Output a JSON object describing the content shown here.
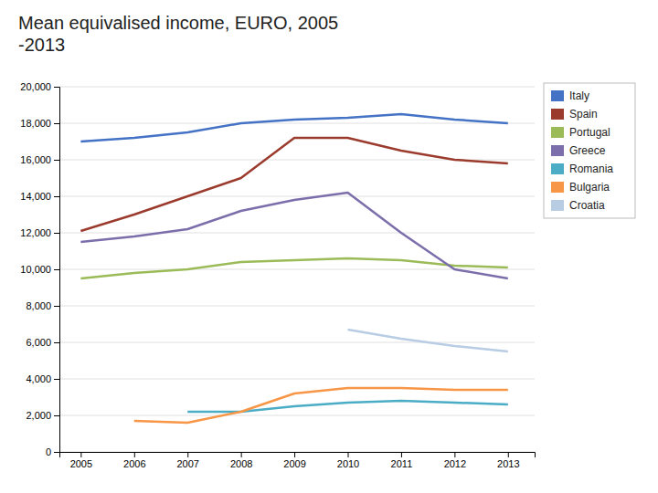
{
  "chart_data": {
    "type": "line",
    "title": "Mean equivalised income, EURO, 2005\n-2013",
    "x": [
      2005,
      2006,
      2007,
      2008,
      2009,
      2010,
      2011,
      2012,
      2013
    ],
    "series": [
      {
        "name": "Italy",
        "color": "#4472C4",
        "values": [
          17000,
          17200,
          17500,
          18000,
          18200,
          18300,
          18500,
          18200,
          18000
        ]
      },
      {
        "name": "Spain",
        "color": "#9B3B2D",
        "values": [
          12100,
          13000,
          14000,
          15000,
          17200,
          17200,
          16500,
          16000,
          15800
        ]
      },
      {
        "name": "Portugal",
        "color": "#9BBB59",
        "values": [
          9500,
          9800,
          10000,
          10400,
          10500,
          10600,
          10500,
          10200,
          10100
        ]
      },
      {
        "name": "Greece",
        "color": "#7B6EAB",
        "values": [
          11500,
          11800,
          12200,
          13200,
          13800,
          14200,
          12000,
          10000,
          9500
        ]
      },
      {
        "name": "Romania",
        "color": "#4BACC6",
        "values": [
          null,
          null,
          2200,
          2200,
          2500,
          2700,
          2800,
          2700,
          2600
        ]
      },
      {
        "name": "Bulgaria",
        "color": "#F79646",
        "values": [
          null,
          1700,
          1600,
          2200,
          3200,
          3500,
          3500,
          3400,
          3400
        ]
      },
      {
        "name": "Croatia",
        "color": "#B8CCE4",
        "values": [
          null,
          null,
          null,
          null,
          null,
          6700,
          6200,
          5800,
          5500
        ]
      }
    ],
    "xlim": [
      2004.6,
      2013.5
    ],
    "xticks": [
      2005,
      2006,
      2007,
      2008,
      2009,
      2010,
      2011,
      2012,
      2013
    ],
    "ylim": [
      0,
      20000
    ],
    "yticks": [
      0,
      {
        "value": 2000,
        "label": "2,000"
      },
      {
        "value": 4000,
        "label": "4,000"
      },
      {
        "value": 6000,
        "label": "6,000"
      },
      {
        "value": 8000,
        "label": "8,000"
      },
      {
        "value": 10000,
        "label": "10,000"
      },
      {
        "value": 12000,
        "label": "12,000"
      },
      {
        "value": 14000,
        "label": "14,000"
      },
      {
        "value": 16000,
        "label": "16,000"
      },
      {
        "value": 18000,
        "label": "18,000"
      },
      {
        "value": 20000,
        "label": "20,000"
      }
    ],
    "grid": true,
    "legend": "right"
  }
}
